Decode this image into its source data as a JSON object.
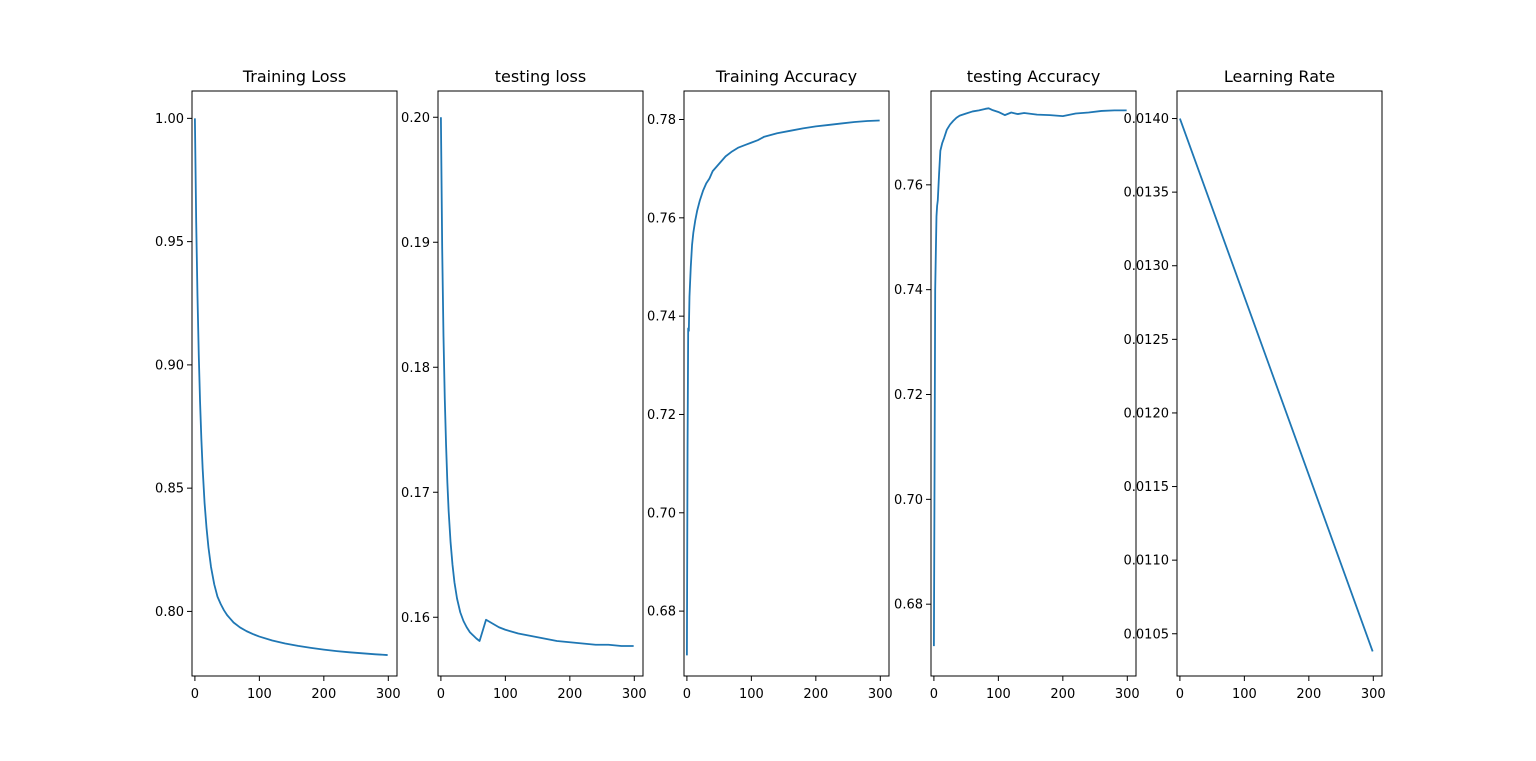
{
  "figure": {
    "background": "#ffffff",
    "line_color": "#1f77b4"
  },
  "chart_data": [
    {
      "type": "line",
      "title": "Training Loss",
      "xlabel": "",
      "ylabel": "",
      "xlim": [
        -4.5,
        313.5
      ],
      "ylim": [
        0.7738,
        1.0111
      ],
      "xticks": [
        0,
        100,
        200,
        300
      ],
      "xtick_labels": [
        "0",
        "100",
        "200",
        "300"
      ],
      "yticks": [
        0.8,
        0.85,
        0.9,
        0.95,
        1.0
      ],
      "ytick_labels": [
        "0.80",
        "0.85",
        "0.90",
        "0.95",
        "1.00"
      ],
      "grid": false,
      "x": [
        0,
        2,
        4,
        6,
        8,
        10,
        12,
        15,
        18,
        21,
        25,
        30,
        35,
        40,
        45,
        50,
        55,
        60,
        70,
        80,
        90,
        100,
        120,
        140,
        160,
        180,
        200,
        220,
        240,
        260,
        280,
        299
      ],
      "y": [
        1.0,
        0.958,
        0.928,
        0.904,
        0.885,
        0.87,
        0.858,
        0.844,
        0.834,
        0.826,
        0.818,
        0.811,
        0.806,
        0.803,
        0.8005,
        0.7985,
        0.797,
        0.7955,
        0.7935,
        0.792,
        0.7908,
        0.7898,
        0.7882,
        0.787,
        0.786,
        0.7852,
        0.7845,
        0.7839,
        0.7834,
        0.783,
        0.7826,
        0.7823
      ]
    },
    {
      "type": "line",
      "title": "testing loss",
      "xlabel": "",
      "ylabel": "",
      "xlim": [
        -4.5,
        313.5
      ],
      "ylim": [
        0.1553,
        0.2021
      ],
      "xticks": [
        0,
        100,
        200,
        300
      ],
      "xtick_labels": [
        "0",
        "100",
        "200",
        "300"
      ],
      "yticks": [
        0.16,
        0.17,
        0.18,
        0.19,
        0.2
      ],
      "ytick_labels": [
        "0.16",
        "0.17",
        "0.18",
        "0.19",
        "0.20"
      ],
      "grid": false,
      "x": [
        0,
        2,
        4,
        6,
        8,
        10,
        12,
        15,
        18,
        21,
        25,
        30,
        35,
        40,
        45,
        50,
        55,
        60,
        70,
        80,
        90,
        100,
        120,
        140,
        160,
        180,
        200,
        220,
        240,
        260,
        280,
        299
      ],
      "y": [
        0.2,
        0.1895,
        0.1825,
        0.1775,
        0.1738,
        0.1708,
        0.1685,
        0.166,
        0.1642,
        0.1628,
        0.1615,
        0.1604,
        0.1597,
        0.1592,
        0.1588,
        0.15855,
        0.1583,
        0.1581,
        0.1598,
        0.1595,
        0.1592,
        0.159,
        0.1587,
        0.1585,
        0.1583,
        0.1581,
        0.158,
        0.1579,
        0.1578,
        0.1578,
        0.1577,
        0.1577
      ]
    },
    {
      "type": "line",
      "title": "Training Accuracy",
      "xlabel": "",
      "ylabel": "",
      "xlim": [
        -4.5,
        313.5
      ],
      "ylim": [
        0.6668,
        0.7858
      ],
      "xticks": [
        0,
        100,
        200,
        300
      ],
      "xtick_labels": [
        "0",
        "100",
        "200",
        "300"
      ],
      "yticks": [
        0.68,
        0.7,
        0.72,
        0.74,
        0.76,
        0.78
      ],
      "ytick_labels": [
        "0.68",
        "0.70",
        "0.72",
        "0.74",
        "0.76",
        "0.78"
      ],
      "grid": false,
      "x": [
        0,
        1,
        2,
        3,
        4,
        6,
        8,
        10,
        13,
        16,
        20,
        25,
        30,
        35,
        40,
        50,
        60,
        70,
        80,
        90,
        100,
        110,
        120,
        140,
        160,
        180,
        200,
        220,
        240,
        260,
        280,
        299
      ],
      "y": [
        0.671,
        0.713,
        0.7375,
        0.737,
        0.744,
        0.75,
        0.7545,
        0.757,
        0.7595,
        0.7615,
        0.7635,
        0.7655,
        0.767,
        0.768,
        0.7695,
        0.771,
        0.7725,
        0.7735,
        0.7743,
        0.7748,
        0.7753,
        0.7758,
        0.7765,
        0.7772,
        0.7777,
        0.7782,
        0.7786,
        0.7789,
        0.7792,
        0.7795,
        0.7797,
        0.7798
      ]
    },
    {
      "type": "line",
      "title": "testing Accuracy",
      "xlabel": "",
      "ylabel": "",
      "xlim": [
        -4.5,
        313.5
      ],
      "ylim": [
        0.6663,
        0.7779
      ],
      "xticks": [
        0,
        100,
        200,
        300
      ],
      "xtick_labels": [
        "0",
        "100",
        "200",
        "300"
      ],
      "yticks": [
        0.68,
        0.7,
        0.72,
        0.74,
        0.76
      ],
      "ytick_labels": [
        "0.68",
        "0.70",
        "0.72",
        "0.74",
        "0.76"
      ],
      "grid": false,
      "x": [
        0,
        1,
        2,
        3,
        4,
        5,
        6,
        8,
        10,
        13,
        16,
        20,
        25,
        30,
        35,
        40,
        50,
        60,
        70,
        80,
        85,
        90,
        100,
        110,
        120,
        130,
        140,
        160,
        180,
        200,
        220,
        240,
        260,
        280,
        299
      ],
      "y": [
        0.672,
        0.705,
        0.74,
        0.747,
        0.754,
        0.756,
        0.757,
        0.762,
        0.7665,
        0.768,
        0.769,
        0.7705,
        0.7715,
        0.7722,
        0.7728,
        0.7732,
        0.7736,
        0.774,
        0.7742,
        0.7745,
        0.7746,
        0.7743,
        0.7739,
        0.7733,
        0.7738,
        0.7735,
        0.7737,
        0.7734,
        0.7733,
        0.7731,
        0.7736,
        0.7738,
        0.7741,
        0.7742,
        0.7742
      ]
    },
    {
      "type": "line",
      "title": "Learning Rate",
      "xlabel": "",
      "ylabel": "",
      "xlim": [
        -4.5,
        313.5
      ],
      "ylim": [
        0.010213,
        0.014187
      ],
      "xticks": [
        0,
        100,
        200,
        300
      ],
      "xtick_labels": [
        "0",
        "100",
        "200",
        "300"
      ],
      "yticks": [
        0.0105,
        0.011,
        0.0115,
        0.012,
        0.0125,
        0.013,
        0.0135,
        0.014
      ],
      "ytick_labels": [
        "0.0105",
        "0.0110",
        "0.0115",
        "0.0120",
        "0.0125",
        "0.0130",
        "0.0135",
        "0.0140"
      ],
      "grid": false,
      "x": [
        0,
        299
      ],
      "y": [
        0.014,
        0.01038
      ]
    }
  ]
}
